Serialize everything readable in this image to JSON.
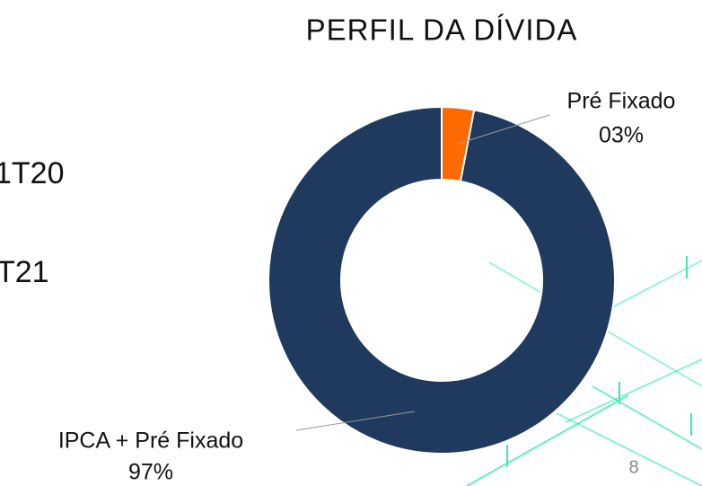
{
  "chart_data": {
    "type": "pie",
    "title": "PERFIL DA DÍVIDA",
    "categories": [
      "Pré Fixado",
      "IPCA + Pré Fixado"
    ],
    "values": [
      3,
      97
    ],
    "value_labels": [
      "03%",
      "97%"
    ],
    "colors": [
      "#ff6a00",
      "#1f3a5e"
    ],
    "donut": true
  },
  "fragments": [
    "1T20",
    "T21"
  ],
  "page_number": "8"
}
